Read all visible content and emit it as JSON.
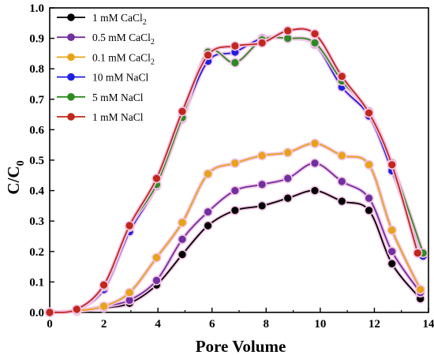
{
  "chart_data": {
    "type": "line",
    "xlabel": "Pore Volume",
    "ylabel_main": "C/C",
    "ylabel_sub": "0",
    "xlim": [
      0,
      14
    ],
    "ylim": [
      0,
      1.0
    ],
    "xticks": [
      0,
      2,
      4,
      6,
      8,
      10,
      12,
      14
    ],
    "yticks": [
      0.0,
      0.1,
      0.2,
      0.3,
      0.4,
      0.5,
      0.6,
      0.7,
      0.8,
      0.9,
      1.0
    ],
    "xtick_labels": [
      "0",
      "2",
      "4",
      "6",
      "8",
      "10",
      "12",
      "14"
    ],
    "ytick_labels": [
      "0.0",
      "0.1",
      "0.2",
      "0.3",
      "0.4",
      "0.5",
      "0.6",
      "0.7",
      "0.8",
      "0.9",
      "1.0"
    ],
    "legend_position": "top-left",
    "grid": false,
    "series": [
      {
        "name": "1 mM CaCl",
        "name_sub": "2",
        "color": "#000000",
        "x": [
          0,
          1.0,
          2.0,
          2.95,
          3.95,
          4.9,
          5.85,
          6.85,
          7.85,
          8.8,
          9.8,
          10.8,
          11.8,
          12.65,
          13.7
        ],
        "y": [
          0.0,
          0.005,
          0.015,
          0.03,
          0.09,
          0.19,
          0.285,
          0.335,
          0.35,
          0.375,
          0.4,
          0.365,
          0.335,
          0.16,
          0.045
        ]
      },
      {
        "name": "0.5 mM CaCl",
        "name_sub": "2",
        "color": "#7030a0",
        "x": [
          0,
          1.0,
          2.0,
          2.95,
          3.95,
          4.9,
          5.85,
          6.85,
          7.85,
          8.8,
          9.8,
          10.8,
          11.8,
          12.65,
          13.7
        ],
        "y": [
          0.0,
          0.005,
          0.02,
          0.04,
          0.105,
          0.24,
          0.33,
          0.4,
          0.42,
          0.44,
          0.49,
          0.43,
          0.375,
          0.2,
          0.065
        ]
      },
      {
        "name": "0.1 mM CaCl",
        "name_sub": "2",
        "color": "#e8a317",
        "x": [
          0,
          1.0,
          2.0,
          2.95,
          3.95,
          4.9,
          5.85,
          6.85,
          7.85,
          8.8,
          9.8,
          10.8,
          11.8,
          12.65,
          13.7
        ],
        "y": [
          0.0,
          0.005,
          0.02,
          0.065,
          0.18,
          0.295,
          0.455,
          0.49,
          0.515,
          0.525,
          0.555,
          0.515,
          0.485,
          0.27,
          0.075
        ]
      },
      {
        "name": "10 mM NaCl",
        "name_sub": "",
        "color": "#1f1fe0",
        "x": [
          0,
          1.0,
          2.0,
          2.95,
          3.95,
          4.9,
          5.85,
          6.85,
          7.85,
          8.8,
          9.8,
          10.8,
          11.8,
          12.65,
          13.8
        ],
        "y": [
          0.0,
          0.01,
          0.075,
          0.265,
          0.415,
          0.635,
          0.825,
          0.855,
          0.9,
          0.9,
          0.88,
          0.74,
          0.645,
          0.465,
          0.185
        ]
      },
      {
        "name": "5 mM NaCl",
        "name_sub": "",
        "color": "#2e8b22",
        "x": [
          0,
          1.0,
          2.0,
          2.95,
          3.95,
          4.9,
          5.85,
          6.85,
          7.85,
          8.8,
          9.8,
          10.8,
          11.8,
          12.65,
          13.8
        ],
        "y": [
          0.0,
          0.01,
          0.085,
          0.28,
          0.42,
          0.64,
          0.855,
          0.82,
          0.895,
          0.9,
          0.885,
          0.76,
          0.66,
          0.49,
          0.195
        ]
      },
      {
        "name": "1 mM NaCl",
        "name_sub": "",
        "color": "#c0281c",
        "x": [
          0,
          1.0,
          2.0,
          2.95,
          3.95,
          4.9,
          5.85,
          6.85,
          7.85,
          8.8,
          9.8,
          10.8,
          11.8,
          12.65,
          13.6
        ],
        "y": [
          0.0,
          0.01,
          0.09,
          0.285,
          0.44,
          0.66,
          0.845,
          0.875,
          0.885,
          0.925,
          0.915,
          0.775,
          0.655,
          0.485,
          0.195
        ]
      }
    ]
  }
}
